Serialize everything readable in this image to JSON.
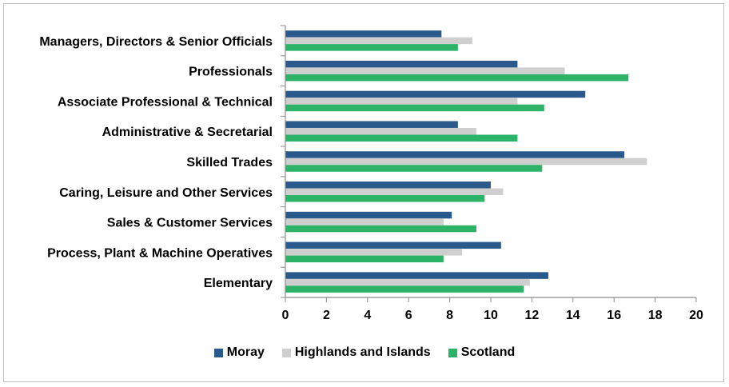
{
  "chart_data": {
    "type": "bar",
    "orientation": "horizontal",
    "categories": [
      "Managers, Directors & Senior Officials",
      "Professionals",
      "Associate Professional & Technical",
      "Administrative & Secretarial",
      "Skilled Trades",
      "Caring, Leisure and Other Services",
      "Sales & Customer Services",
      "Process, Plant & Machine Operatives",
      "Elementary"
    ],
    "series": [
      {
        "name": "Moray",
        "color": "#2a5a8c",
        "values": [
          7.6,
          11.3,
          14.6,
          8.4,
          16.5,
          10.0,
          8.1,
          10.5,
          12.8
        ]
      },
      {
        "name": "Highlands and Islands",
        "color": "#cfcfcf",
        "values": [
          9.1,
          13.6,
          11.3,
          9.3,
          17.6,
          10.6,
          7.7,
          8.6,
          11.9
        ]
      },
      {
        "name": "Scotland",
        "color": "#2db368",
        "values": [
          8.4,
          16.7,
          12.6,
          11.3,
          12.5,
          9.7,
          9.3,
          7.7,
          11.6
        ]
      }
    ],
    "xlim": [
      0,
      20
    ],
    "xticks": [
      "0",
      "2",
      "4",
      "6",
      "8",
      "10",
      "12",
      "14",
      "16",
      "18",
      "20"
    ],
    "legend_position": "bottom",
    "grid": false,
    "title": "",
    "xlabel": "",
    "ylabel": ""
  }
}
